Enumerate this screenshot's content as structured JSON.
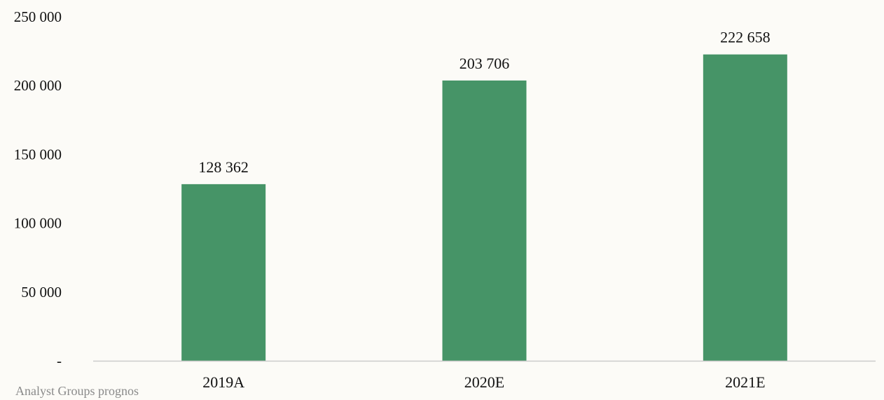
{
  "chart_data": {
    "type": "bar",
    "categories": [
      "2019A",
      "2020E",
      "2021E"
    ],
    "values": [
      128362,
      203706,
      222658
    ],
    "data_labels": [
      "128 362",
      "203 706",
      "222 658"
    ],
    "ylim": [
      0,
      250000
    ],
    "y_ticks": [
      0,
      50000,
      100000,
      150000,
      200000,
      250000
    ],
    "y_tick_labels": [
      "-",
      "50 000",
      "100 000",
      "150 000",
      "200 000",
      "250 000"
    ],
    "bar_color": "#469467",
    "axis_color": "#cccccc",
    "grid": false,
    "legend": "none"
  },
  "source_note": "Analyst Groups prognos"
}
